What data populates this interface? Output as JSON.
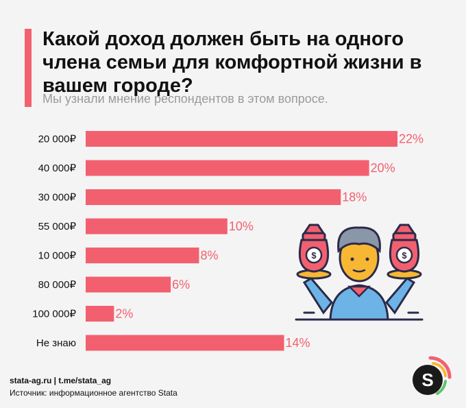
{
  "header": {
    "title": "Какой доход должен быть на одного члена семьи для комфортной жизни в вашем городе?",
    "subtitle": "Мы узнали мнение респондентов в этом вопросе."
  },
  "footer": {
    "links": "stata-ag.ru | t.me/stata_ag",
    "source": "Источник: информационное агентство Stata"
  },
  "colors": {
    "bar": "#f2606f",
    "value_label": "#f2606f",
    "background": "#f4f4f4"
  },
  "logo": {
    "text": "S"
  },
  "illustration": {
    "icon": "person-holding-money-bags-icon"
  },
  "chart_data": {
    "type": "bar",
    "orientation": "horizontal",
    "categories": [
      "20 000₽",
      "40 000₽",
      "30 000₽",
      "55 000₽",
      "10 000₽",
      "80 000₽",
      "100 000₽",
      "Не знаю"
    ],
    "values": [
      22,
      20,
      18,
      10,
      8,
      6,
      2,
      14
    ],
    "value_labels": [
      "22%",
      "20%",
      "18%",
      "10%",
      "8%",
      "6%",
      "2%",
      "14%"
    ],
    "unit": "%",
    "xlim": [
      0,
      22
    ],
    "grid": false,
    "legend": "none"
  }
}
